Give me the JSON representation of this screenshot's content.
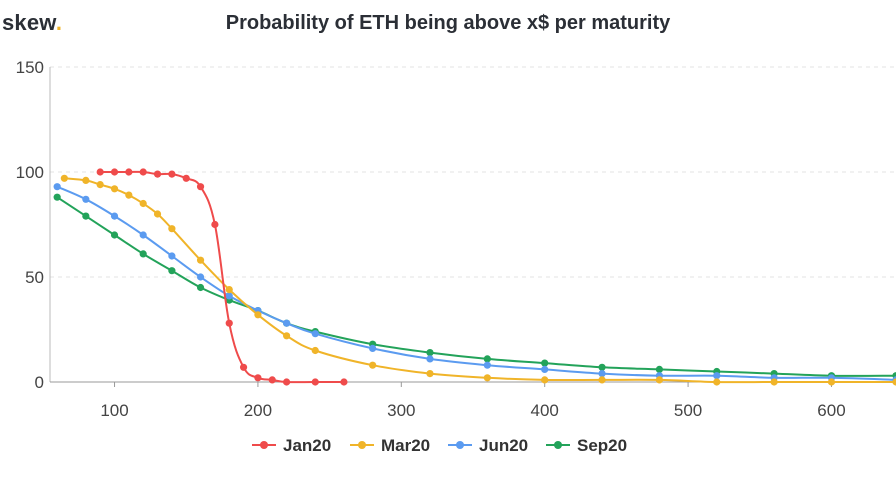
{
  "brand": {
    "name": "skew",
    "dot": ".",
    "dot_color": "#f0b429"
  },
  "chart_data": {
    "type": "line",
    "title": "Probability of ETH being above x$ per maturity",
    "xlabel": "",
    "ylabel": "",
    "xlim": [
      55,
      645
    ],
    "ylim": [
      0,
      150
    ],
    "x_ticks": [
      100,
      200,
      300,
      400,
      500,
      600
    ],
    "y_ticks": [
      0,
      50,
      100,
      150
    ],
    "grid": true,
    "legend_position": "bottom-center",
    "series": [
      {
        "name": "Jan20",
        "color": "#ef4b4b",
        "points": [
          [
            90,
            100
          ],
          [
            100,
            100
          ],
          [
            110,
            100
          ],
          [
            120,
            100
          ],
          [
            130,
            99
          ],
          [
            140,
            99
          ],
          [
            150,
            97
          ],
          [
            160,
            93
          ],
          [
            170,
            75
          ],
          [
            180,
            28
          ],
          [
            190,
            7
          ],
          [
            200,
            2
          ],
          [
            210,
            1
          ],
          [
            220,
            0
          ],
          [
            240,
            0
          ],
          [
            260,
            0
          ]
        ]
      },
      {
        "name": "Mar20",
        "color": "#f0b429",
        "points": [
          [
            65,
            97
          ],
          [
            80,
            96
          ],
          [
            90,
            94
          ],
          [
            100,
            92
          ],
          [
            110,
            89
          ],
          [
            120,
            85
          ],
          [
            130,
            80
          ],
          [
            140,
            73
          ],
          [
            160,
            58
          ],
          [
            180,
            44
          ],
          [
            200,
            32
          ],
          [
            220,
            22
          ],
          [
            240,
            15
          ],
          [
            280,
            8
          ],
          [
            320,
            4
          ],
          [
            360,
            2
          ],
          [
            400,
            1
          ],
          [
            440,
            1
          ],
          [
            480,
            1
          ],
          [
            520,
            0
          ],
          [
            560,
            0
          ],
          [
            600,
            0
          ],
          [
            645,
            0
          ]
        ]
      },
      {
        "name": "Jun20",
        "color": "#5b9bf0",
        "points": [
          [
            60,
            93
          ],
          [
            80,
            87
          ],
          [
            100,
            79
          ],
          [
            120,
            70
          ],
          [
            140,
            60
          ],
          [
            160,
            50
          ],
          [
            180,
            41
          ],
          [
            200,
            34
          ],
          [
            220,
            28
          ],
          [
            240,
            23
          ],
          [
            280,
            16
          ],
          [
            320,
            11
          ],
          [
            360,
            8
          ],
          [
            400,
            6
          ],
          [
            440,
            4
          ],
          [
            480,
            3
          ],
          [
            520,
            3
          ],
          [
            560,
            2
          ],
          [
            600,
            2
          ],
          [
            645,
            1
          ]
        ]
      },
      {
        "name": "Sep20",
        "color": "#23a35a",
        "points": [
          [
            60,
            88
          ],
          [
            80,
            79
          ],
          [
            100,
            70
          ],
          [
            120,
            61
          ],
          [
            140,
            53
          ],
          [
            160,
            45
          ],
          [
            180,
            39
          ],
          [
            200,
            34
          ],
          [
            220,
            28
          ],
          [
            240,
            24
          ],
          [
            280,
            18
          ],
          [
            320,
            14
          ],
          [
            360,
            11
          ],
          [
            400,
            9
          ],
          [
            440,
            7
          ],
          [
            480,
            6
          ],
          [
            520,
            5
          ],
          [
            560,
            4
          ],
          [
            600,
            3
          ],
          [
            645,
            3
          ]
        ]
      }
    ]
  }
}
